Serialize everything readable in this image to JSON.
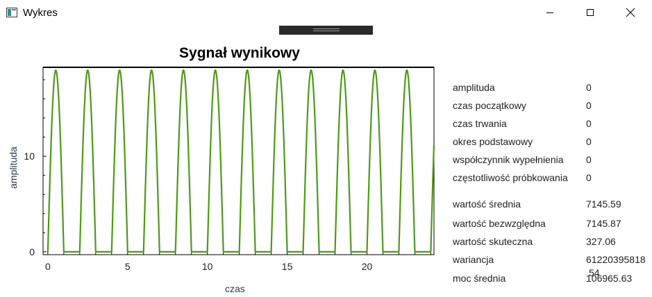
{
  "window": {
    "title": "Wykres"
  },
  "chart_data": {
    "type": "line",
    "title": "Sygnał wynikowy",
    "xlabel": "czas",
    "ylabel": "amplituda",
    "xlim": [
      -0.3,
      24.2
    ],
    "ylim": [
      -0.3,
      19.3
    ],
    "x_ticks": [
      0,
      5,
      10,
      15,
      20
    ],
    "y_ticks": [
      0,
      10
    ],
    "grid": false,
    "legend": "none",
    "series": [
      {
        "color": "#4c9a16",
        "period": 2.0,
        "pulse_width": 1.0,
        "peak": 19.0,
        "x": [
          0,
          0.05,
          0.1,
          0.2,
          0.3,
          0.4,
          0.5,
          0.6,
          0.7,
          0.8,
          0.9,
          1.0,
          2.0
        ],
        "y": [
          0,
          2.95,
          5.87,
          11.2,
          15.4,
          18.1,
          19.0,
          18.1,
          15.4,
          11.2,
          5.87,
          0,
          0
        ]
      }
    ]
  },
  "stats": {
    "params": [
      {
        "label": "amplituda",
        "value": "0"
      },
      {
        "label": "czas początkowy",
        "value": "0"
      },
      {
        "label": "czas trwania",
        "value": "0"
      },
      {
        "label": "okres podstawowy",
        "value": "0"
      },
      {
        "label": "współczynnik wypełnienia",
        "value": "0"
      },
      {
        "label": "częstotliwość próbkowania",
        "value": "0"
      }
    ],
    "results": [
      {
        "label": "wartość średnia",
        "value": "7145.59"
      },
      {
        "label": "wartość bezwzględna",
        "value": "7145.87"
      },
      {
        "label": "wartość skuteczna",
        "value": "327.06"
      },
      {
        "label": "wariancja",
        "value": "61220395818",
        "value_wrap": "54"
      },
      {
        "label": "moc średnia",
        "value": "106965.63"
      }
    ]
  },
  "colors": {
    "line": "#4c9a16",
    "axis_text": "#1f3b4d",
    "grip": "#2a2a2a"
  }
}
